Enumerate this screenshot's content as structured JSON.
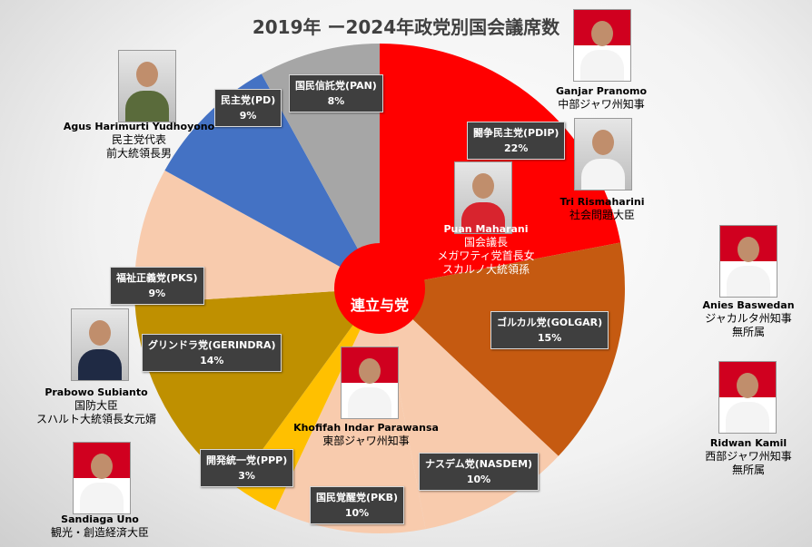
{
  "chart_data": {
    "type": "pie",
    "title": "2019年 ー2024年政党別国会議席数",
    "start_angle_deg": 0,
    "direction": "clockwise",
    "slices": [
      {
        "name": "闘争民主党(PDIP)",
        "value": 22,
        "label": "22%",
        "color": "#ff0000"
      },
      {
        "name": "ゴルカル党(GOLGAR)",
        "value": 15,
        "label": "15%",
        "color": "#c55a11"
      },
      {
        "name": "ナスデム党(NASDEM)",
        "value": 10,
        "label": "10%",
        "color": "#f8cbad"
      },
      {
        "name": "国民覚醒党(PKB)",
        "value": 10,
        "label": "10%",
        "color": "#f8cbad"
      },
      {
        "name": "開発統一党(PPP)",
        "value": 3,
        "label": "3%",
        "color": "#ffc000"
      },
      {
        "name": "グリンドラ党(GERINDRA)",
        "value": 14,
        "label": "14%",
        "color": "#bf9000"
      },
      {
        "name": "福祉正義党(PKS)",
        "value": 9,
        "label": "9%",
        "color": "#f8cbad"
      },
      {
        "name": "民主党(PD)",
        "value": 9,
        "label": "9%",
        "color": "#4472c4"
      },
      {
        "name": "国民信託党(PAN)",
        "value": 8,
        "label": "8%",
        "color": "#a6a6a6"
      }
    ],
    "center_label": "連立与党",
    "center_color": "#ff0000"
  },
  "people": {
    "ganjar": {
      "name": "Ganjar Pranomo",
      "role1": "中部ジャワ州知事"
    },
    "tri": {
      "name": "Tri Rismaharini",
      "role1": "社会問題大臣"
    },
    "puan": {
      "name": "Puan Maharani",
      "role1": "国会議長",
      "role2": "メガワティ党首長女",
      "role3": "スカルノ大統領孫"
    },
    "agus": {
      "name": "Agus Harimurti Yudhoyono",
      "role1": "民主党代表",
      "role2": "前大統領長男"
    },
    "anies": {
      "name": "Anies Baswedan",
      "role1": "ジャカルタ州知事",
      "role2": "無所属"
    },
    "ridwan": {
      "name": "Ridwan Kamil",
      "role1": "西部ジャワ州知事",
      "role2": "無所属"
    },
    "prabowo": {
      "name": "Prabowo Subianto",
      "role1": "国防大臣",
      "role2": "スハルト大統領長女元婿"
    },
    "khofifah": {
      "name": "Khofifah Indar Parawansa",
      "role1": "東部ジャワ州知事"
    },
    "sandiaga": {
      "name": "Sandiaga Uno",
      "role1": "観光・創造経済大臣"
    }
  }
}
